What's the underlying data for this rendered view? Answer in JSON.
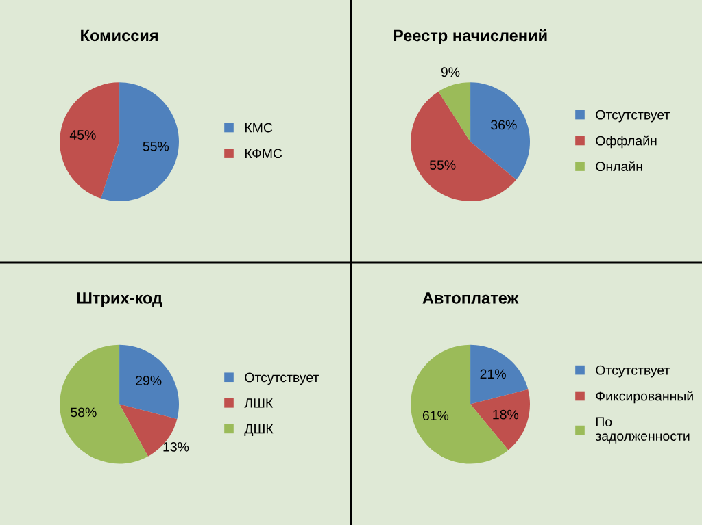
{
  "chart_data": [
    {
      "type": "pie",
      "title": "Комиссия",
      "categories": [
        "КМС",
        "КФМС"
      ],
      "values": [
        55,
        45
      ],
      "colors": [
        "#4f81bd",
        "#c0504d"
      ],
      "value_labels": [
        "55%",
        "45%"
      ],
      "legend": "right"
    },
    {
      "type": "pie",
      "title": "Реестр начислений",
      "categories": [
        "Отсутствует",
        "Оффлайн",
        "Онлайн"
      ],
      "values": [
        36,
        55,
        9
      ],
      "colors": [
        "#4f81bd",
        "#c0504d",
        "#9bbb59"
      ],
      "value_labels": [
        "36%",
        "55%",
        "9%"
      ],
      "legend": "right"
    },
    {
      "type": "pie",
      "title": "Штрих-код",
      "categories": [
        "Отсутствует",
        "ЛШК",
        "ДШК"
      ],
      "values": [
        29,
        13,
        58
      ],
      "colors": [
        "#4f81bd",
        "#c0504d",
        "#9bbb59"
      ],
      "value_labels": [
        "29%",
        "13%",
        "58%"
      ],
      "legend": "right"
    },
    {
      "type": "pie",
      "title": "Автоплатеж",
      "categories": [
        "Отсутствует",
        "Фиксированный",
        "По\nзадолженности"
      ],
      "values": [
        21,
        18,
        61
      ],
      "colors": [
        "#4f81bd",
        "#c0504d",
        "#9bbb59"
      ],
      "value_labels": [
        "21%",
        "18%",
        "61%"
      ],
      "legend": "right"
    }
  ]
}
